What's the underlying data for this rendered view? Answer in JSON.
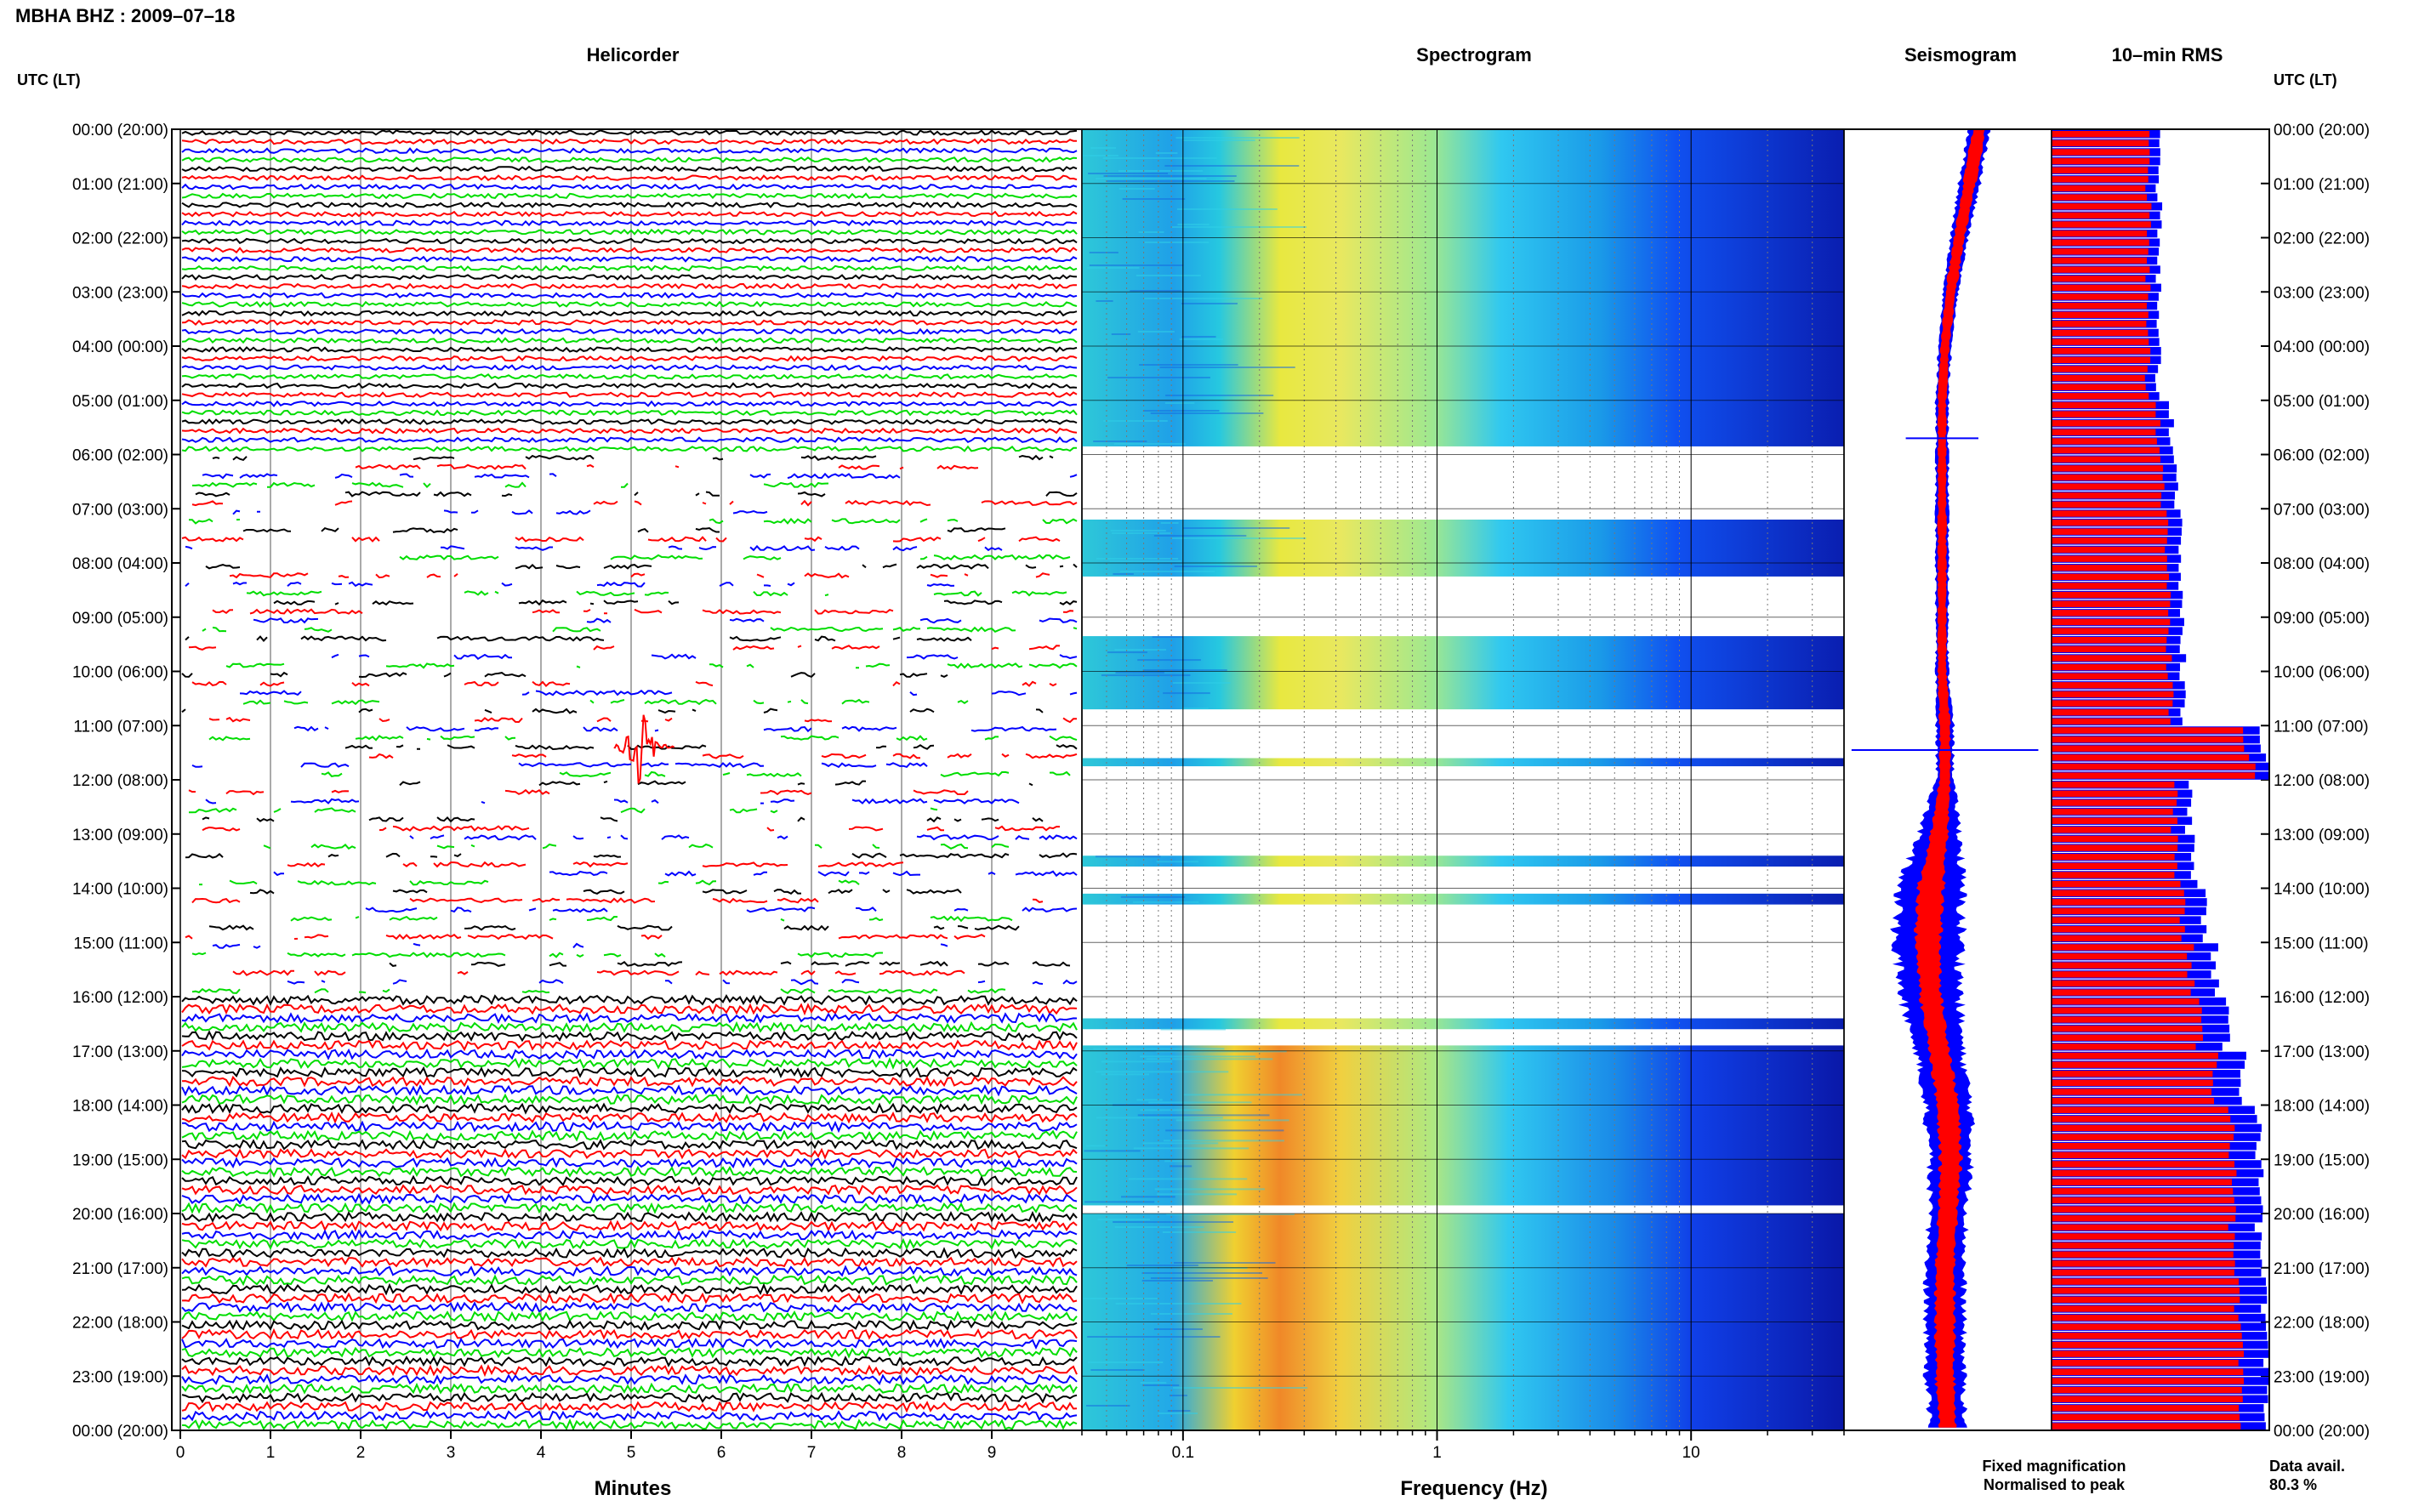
{
  "header": {
    "title": "MBHA BHZ : 2009–07–18"
  },
  "panels": {
    "helicorder_title": "Helicorder",
    "spectrogram_title": "Spectrogram",
    "seismogram_title": "Seismogram",
    "rms_title": "10–min RMS"
  },
  "axes": {
    "utc_label_left": "UTC (LT)",
    "utc_label_right": "UTC (LT)",
    "time_labels": [
      "00:00 (20:00)",
      "01:00 (21:00)",
      "02:00 (22:00)",
      "03:00 (23:00)",
      "04:00 (00:00)",
      "05:00 (01:00)",
      "06:00 (02:00)",
      "07:00 (03:00)",
      "08:00 (04:00)",
      "09:00 (05:00)",
      "10:00 (06:00)",
      "11:00 (07:00)",
      "12:00 (08:00)",
      "13:00 (09:00)",
      "14:00 (10:00)",
      "15:00 (11:00)",
      "16:00 (12:00)",
      "17:00 (13:00)",
      "18:00 (14:00)",
      "19:00 (15:00)",
      "20:00 (16:00)",
      "21:00 (17:00)",
      "22:00 (18:00)",
      "23:00 (19:00)",
      "00:00 (20:00)"
    ],
    "minutes_label": "Minutes",
    "minute_ticks": [
      "0",
      "1",
      "2",
      "3",
      "4",
      "5",
      "6",
      "7",
      "8",
      "9"
    ],
    "freq_label": "Frequency (Hz)",
    "freq_ticks": [
      "0.1",
      "1",
      "10"
    ]
  },
  "legend": {
    "fixed": "Fixed magnification",
    "normalised": "Normalised to peak",
    "fixed_color": "#0000ff",
    "normalised_color": "#ff0000"
  },
  "data_availability": {
    "label": "Data avail.",
    "value": "80.3 %"
  },
  "chart_data": [
    {
      "type": "heatmap",
      "name": "helicorder",
      "trace_colors": [
        "#000000",
        "#ff0000",
        "#0000ff",
        "#00dd00"
      ],
      "x_range_minutes": [
        0,
        10
      ],
      "y_range_hours": [
        0,
        24
      ],
      "quiet_hours_utc": [
        [
          0,
          6
        ],
        [
          16,
          24
        ]
      ],
      "gappy_hours_utc": [
        [
          6,
          16
        ]
      ],
      "events": [
        {
          "hour": 11.4,
          "minute": 5.1,
          "label": "spike"
        }
      ]
    },
    {
      "type": "heatmap",
      "name": "spectrogram",
      "x_scale": "log",
      "x_range_hz": [
        0.04,
        40
      ],
      "colormap": [
        "#00008b",
        "#0000ff",
        "#00bfff",
        "#40e0d0",
        "#ffff00",
        "#ff8c00"
      ],
      "data_segments_hours": [
        [
          0,
          5.85
        ],
        [
          7.2,
          8.25
        ],
        [
          9.35,
          10.7
        ],
        [
          11.6,
          11.75
        ],
        [
          13.4,
          13.6
        ],
        [
          14.1,
          14.3
        ],
        [
          16.4,
          16.6
        ],
        [
          16.9,
          19.85
        ],
        [
          20.0,
          24.0
        ]
      ]
    },
    {
      "type": "line",
      "name": "seismogram",
      "x_range": [
        -1,
        1
      ],
      "hours": [
        0,
        1,
        2,
        3,
        4,
        5,
        6,
        7,
        8,
        9,
        10,
        11,
        12,
        13,
        14,
        15,
        16,
        17,
        18,
        19,
        20,
        21,
        22,
        23,
        24
      ],
      "center": [
        0.55,
        0.38,
        0.2,
        0.05,
        -0.05,
        -0.1,
        -0.1,
        -0.1,
        -0.1,
        -0.1,
        -0.1,
        -0.05,
        -0.05,
        -0.15,
        -0.3,
        -0.35,
        -0.3,
        -0.15,
        0.0,
        0.05,
        0.0,
        -0.05,
        -0.05,
        -0.05,
        0.0
      ],
      "amplitude_fixed": [
        0.1,
        0.1,
        0.08,
        0.07,
        0.06,
        0.06,
        0.06,
        0.06,
        0.06,
        0.06,
        0.06,
        0.08,
        0.08,
        0.2,
        0.3,
        0.32,
        0.28,
        0.22,
        0.22,
        0.2,
        0.18,
        0.18,
        0.18,
        0.18,
        0.16
      ],
      "amplitude_normalised": [
        0.06,
        0.06,
        0.05,
        0.05,
        0.04,
        0.04,
        0.04,
        0.04,
        0.04,
        0.04,
        0.04,
        0.05,
        0.05,
        0.08,
        0.12,
        0.12,
        0.1,
        0.1,
        0.1,
        0.1,
        0.09,
        0.09,
        0.09,
        0.09,
        0.08
      ]
    },
    {
      "type": "bar",
      "name": "10-min RMS",
      "orientation": "horizontal",
      "hours": [
        0,
        1,
        2,
        3,
        4,
        5,
        6,
        7,
        8,
        9,
        10,
        11,
        11.5,
        12,
        13,
        14,
        15,
        16,
        17,
        18,
        19,
        20,
        21,
        22,
        23
      ],
      "rms_normalised": [
        0.48,
        0.47,
        0.47,
        0.46,
        0.47,
        0.52,
        0.55,
        0.55,
        0.58,
        0.57,
        0.58,
        0.95,
        0.98,
        0.6,
        0.62,
        0.64,
        0.68,
        0.72,
        0.8,
        0.88,
        0.9,
        0.88,
        0.9,
        0.92,
        0.92
      ],
      "rms_fixed": [
        0.5,
        0.49,
        0.49,
        0.48,
        0.49,
        0.55,
        0.58,
        0.58,
        0.6,
        0.6,
        0.6,
        0.97,
        1.0,
        0.63,
        0.66,
        0.7,
        0.75,
        0.8,
        0.88,
        0.95,
        0.97,
        0.95,
        0.97,
        0.98,
        0.98
      ]
    }
  ]
}
